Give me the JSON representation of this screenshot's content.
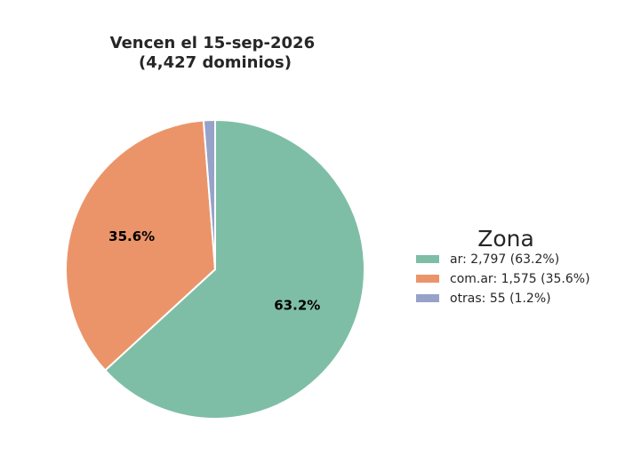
{
  "chart_data": {
    "type": "pie",
    "title": "Vencen el 15-sep-2026\n(4,427 dominios)",
    "title_lines": [
      "Vencen el 15-sep-2026",
      "(4,427 dominios)"
    ],
    "slices": [
      {
        "label": "ar",
        "value": 2797,
        "percent": 63.2,
        "pct_text": "63.2%",
        "legend_text": "ar: 2,797 (63.2%)",
        "color": "#7fbea6"
      },
      {
        "label": "com.ar",
        "value": 1575,
        "percent": 35.6,
        "pct_text": "35.6%",
        "legend_text": "com.ar: 1,575 (35.6%)",
        "color": "#eb946a"
      },
      {
        "label": "otras",
        "value": 55,
        "percent": 1.2,
        "pct_text": "",
        "legend_text": "otras: 55 (1.2%)",
        "color": "#96a2c8"
      }
    ],
    "start_angle_deg": 90,
    "direction": "clockwise",
    "legend": {
      "title": "Zona",
      "placement": "right"
    }
  }
}
